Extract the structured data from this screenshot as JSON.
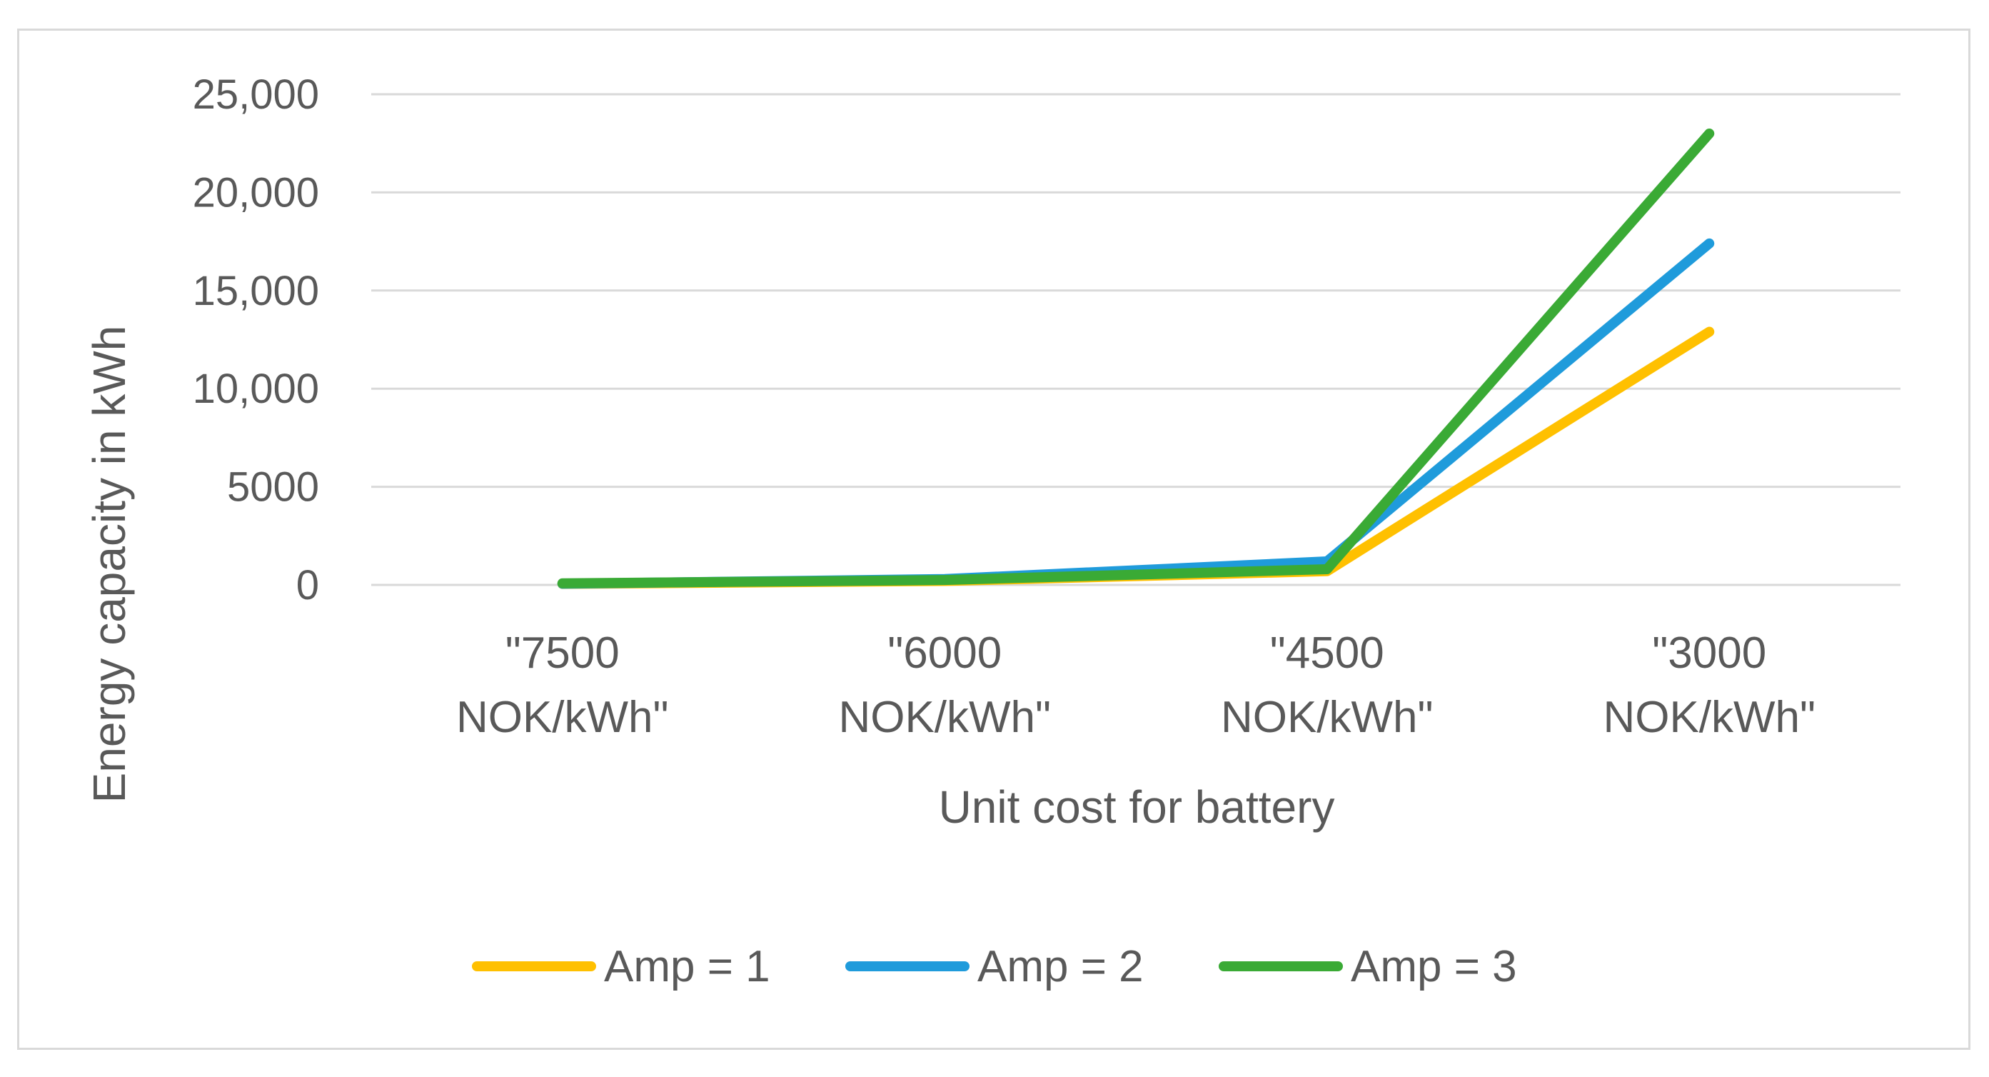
{
  "chart_data": {
    "type": "line",
    "title": "",
    "xlabel": "Unit cost for battery",
    "ylabel": "Energy capacity  in kWh",
    "categories": [
      [
        "\"7500",
        "NOK/kWh\""
      ],
      [
        "\"6000",
        "NOK/kWh\""
      ],
      [
        "\"4500",
        "NOK/kWh\""
      ],
      [
        "\"3000",
        "NOK/kWh\""
      ]
    ],
    "ylim": [
      0,
      25000
    ],
    "yticks": [
      0,
      5000,
      10000,
      15000,
      20000,
      25000
    ],
    "ytick_labels": [
      "0",
      "5000",
      "10,000",
      "15,000",
      "20,000",
      "25,000"
    ],
    "grid": true,
    "legend_position": "bottom",
    "series": [
      {
        "name": "Amp = 1",
        "color": "#FFC000",
        "values": [
          50,
          200,
          700,
          12900
        ]
      },
      {
        "name": "Amp = 2",
        "color": "#1F9BDB",
        "values": [
          60,
          300,
          1200,
          17400
        ]
      },
      {
        "name": "Amp = 3",
        "color": "#3AAA35",
        "values": [
          80,
          250,
          800,
          23000
        ]
      }
    ]
  }
}
